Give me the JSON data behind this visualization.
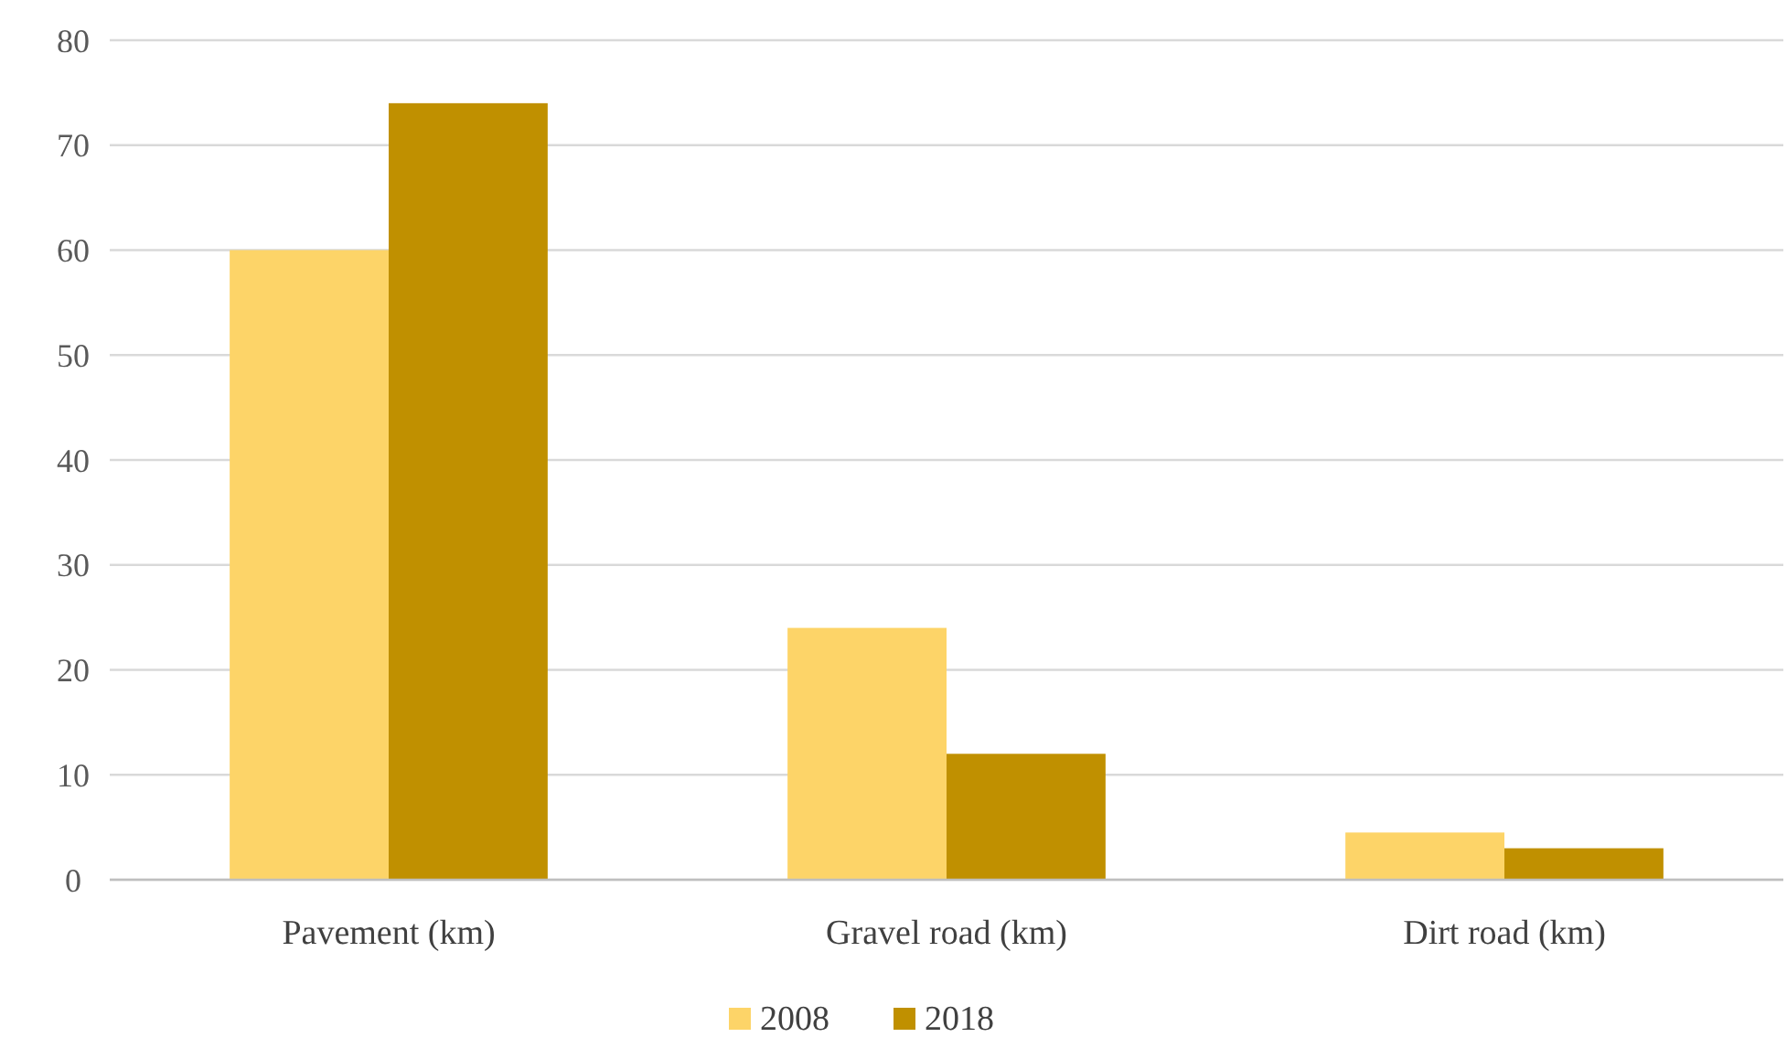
{
  "chart_data": {
    "type": "bar",
    "categories": [
      "Pavement (km)",
      "Gravel road (km)",
      "Dirt road (km)"
    ],
    "series": [
      {
        "name": "2008",
        "color": "#fdd468",
        "values": [
          60,
          24,
          4.5
        ]
      },
      {
        "name": "2018",
        "color": "#c09000",
        "values": [
          74,
          12,
          3
        ]
      }
    ],
    "ylim": [
      0,
      80
    ],
    "yticks": [
      0,
      10,
      20,
      30,
      40,
      50,
      60,
      70,
      80
    ],
    "grid": "y",
    "legend": "bottom"
  }
}
